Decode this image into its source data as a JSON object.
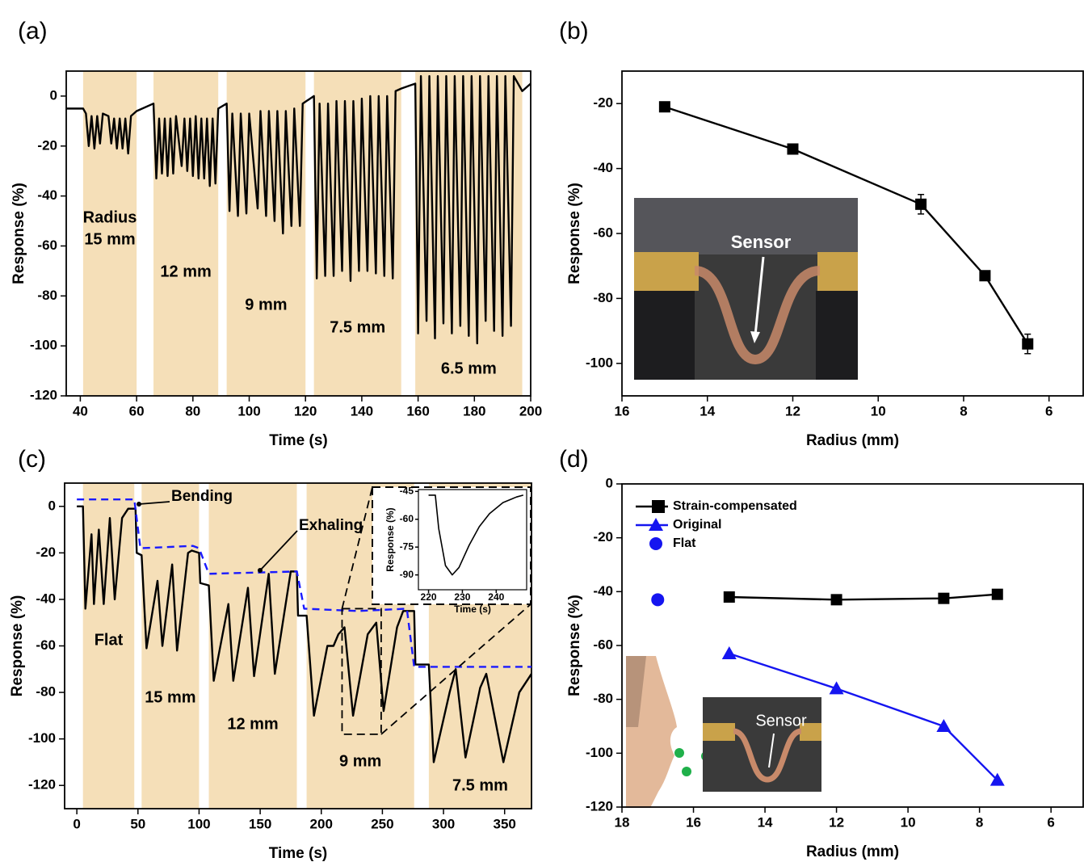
{
  "chart_data": [
    {
      "type": "line",
      "panel": "(a)",
      "xlabel": "Time (s)",
      "ylabel": "Response (%)",
      "xlim": [
        35,
        200
      ],
      "ylim": [
        -120,
        10
      ],
      "xticks": [
        40,
        60,
        80,
        100,
        120,
        140,
        160,
        180,
        200
      ],
      "yticks": [
        -120,
        -100,
        -80,
        -60,
        -40,
        -20,
        0
      ],
      "band_color": "#f5dfb8",
      "band_title": "Radius",
      "bands": [
        {
          "start": 41,
          "end": 60,
          "label": "15 mm"
        },
        {
          "start": 66,
          "end": 89,
          "label": "12 mm"
        },
        {
          "start": 92,
          "end": 120,
          "label": "9 mm"
        },
        {
          "start": 123,
          "end": 154,
          "label": "7.5 mm"
        },
        {
          "start": 159,
          "end": 197,
          "label": "6.5 mm"
        }
      ],
      "series": [
        {
          "color": "#000000",
          "x": [
            35,
            41,
            42,
            43,
            44,
            45,
            46,
            47,
            48,
            50,
            51,
            52,
            53,
            54,
            55,
            56,
            57,
            58,
            60,
            66,
            67,
            68,
            69,
            70,
            71,
            72,
            73,
            74,
            76,
            77,
            78,
            79,
            80,
            81,
            82,
            83,
            84,
            85,
            86,
            87,
            88,
            89,
            92,
            93,
            94,
            96,
            97,
            99,
            100,
            103,
            104,
            106,
            107,
            109,
            110,
            112,
            113,
            115,
            116,
            118,
            119,
            123,
            124,
            125,
            127,
            128,
            130,
            131,
            133,
            134,
            136,
            137,
            139,
            140,
            142,
            143,
            145,
            146,
            148,
            149,
            151,
            152,
            154,
            159,
            160,
            161,
            163,
            164,
            166,
            167,
            169,
            170,
            172,
            173,
            175,
            176,
            178,
            179,
            181,
            182,
            184,
            185,
            187,
            188,
            190,
            191,
            193,
            194,
            197,
            200
          ],
          "values": [
            -5,
            -5,
            -7,
            -20,
            -8,
            -21,
            -8,
            -19,
            -7,
            -8,
            -19,
            -9,
            -21,
            -9,
            -21,
            -9,
            -23,
            -8,
            -6,
            -3,
            -33,
            -9,
            -31,
            -9,
            -32,
            -9,
            -31,
            -8,
            -28,
            -9,
            -30,
            -9,
            -32,
            -8,
            -33,
            -9,
            -33,
            -9,
            -36,
            -9,
            -35,
            -5,
            -3,
            -46,
            -7,
            -48,
            -7,
            -47,
            -7,
            -45,
            -6,
            -48,
            -6,
            -50,
            -6,
            -55,
            -6,
            -52,
            -5,
            -52,
            -3,
            0,
            -73,
            -3,
            -72,
            -3,
            -72,
            -2,
            -70,
            -2,
            -74,
            -2,
            -70,
            -1,
            -70,
            0,
            -71,
            0,
            -72,
            0,
            -73,
            2,
            3,
            5,
            -95,
            8,
            -90,
            8,
            -97,
            8,
            -91,
            8,
            -95,
            8,
            -92,
            8,
            -96,
            8,
            -99,
            8,
            -90,
            8,
            -94,
            8,
            -96,
            8,
            -92,
            8,
            2,
            5
          ]
        }
      ]
    },
    {
      "type": "line",
      "panel": "(b)",
      "xlabel": "Radius (mm)",
      "ylabel": "Response (%)",
      "xlim": [
        16,
        5.2
      ],
      "ylim": [
        -110,
        -10
      ],
      "xticks": [
        16,
        14,
        12,
        10,
        8,
        6
      ],
      "yticks": [
        -100,
        -80,
        -60,
        -40,
        -20
      ],
      "inset_label": "Sensor",
      "series": [
        {
          "color": "#000000",
          "marker": "square",
          "line": true,
          "x": [
            15,
            12,
            9,
            7.5,
            6.5
          ],
          "values": [
            -21,
            -34,
            -51,
            -73,
            -94
          ],
          "errors": [
            1,
            1.5,
            3,
            1,
            3
          ]
        }
      ]
    },
    {
      "type": "line",
      "panel": "(c)",
      "xlabel": "Time (s)",
      "ylabel": "Response (%)",
      "xlim": [
        -10,
        372
      ],
      "ylim": [
        -130,
        10
      ],
      "xticks": [
        0,
        50,
        100,
        150,
        200,
        250,
        300,
        350
      ],
      "yticks": [
        -120,
        -100,
        -80,
        -60,
        -40,
        -20,
        0
      ],
      "band_color": "#f5dfb8",
      "bands": [
        {
          "start": 5,
          "end": 47,
          "label": "Flat"
        },
        {
          "start": 53,
          "end": 100,
          "label": "15 mm"
        },
        {
          "start": 108,
          "end": 180,
          "label": "12 mm"
        },
        {
          "start": 188,
          "end": 276,
          "label": "9 mm"
        },
        {
          "start": 288,
          "end": 372,
          "label": "7.5 mm"
        }
      ],
      "annotations": [
        "Bending",
        "Exhaling"
      ],
      "series": [
        {
          "color": "#000000",
          "x": [
            0,
            5,
            7,
            12,
            14,
            18,
            22,
            27,
            31,
            37,
            42,
            48,
            49,
            53,
            57,
            66,
            70,
            78,
            82,
            91,
            94,
            100,
            101,
            108,
            112,
            124,
            128,
            140,
            145,
            157,
            162,
            175,
            180,
            181,
            188,
            194,
            205,
            210,
            214,
            219,
            226,
            238,
            245,
            251,
            262,
            267,
            276,
            277,
            288,
            292,
            305,
            310,
            318,
            330,
            335,
            349,
            362,
            372
          ],
          "values": [
            0,
            0,
            -44,
            -12,
            -42,
            -10,
            -42,
            -5,
            -40,
            -5,
            -1,
            -1,
            -20,
            -21,
            -61,
            -32,
            -60,
            -25,
            -62,
            -20,
            -19,
            -20,
            -33,
            -34,
            -75,
            -42,
            -75,
            -35,
            -73,
            -29,
            -72,
            -28,
            -28,
            -47,
            -47,
            -90,
            -60,
            -60,
            -55,
            -52,
            -90,
            -55,
            -50,
            -88,
            -52,
            -45,
            -45,
            -68,
            -68,
            -110,
            -80,
            -70,
            -108,
            -78,
            -72,
            -110,
            -80,
            -72
          ]
        },
        {
          "color": "#1a1aff",
          "dash": true,
          "x": [
            0,
            47,
            52,
            95,
            100,
            108,
            180,
            186,
            230,
            270,
            276,
            372
          ],
          "values": [
            3,
            3,
            -18,
            -17,
            -18,
            -29,
            -28,
            -44,
            -45,
            -44,
            -69,
            -69
          ]
        }
      ],
      "inset": {
        "type": "line",
        "xlabel": "Time (s)",
        "ylabel": "Response (%)",
        "xlim": [
          217,
          249
        ],
        "ylim": [
          -98,
          -44
        ],
        "xticks": [
          220,
          230,
          240
        ],
        "yticks": [
          -90,
          -75,
          -60,
          -45
        ],
        "series": [
          {
            "color": "#000000",
            "x": [
              220,
              222,
              223,
              225,
              227,
              229,
              232,
              235,
              238,
              242,
              246,
              248
            ],
            "values": [
              -47,
              -47,
              -65,
              -85,
              -90,
              -86,
              -74,
              -64,
              -57,
              -51,
              -48,
              -47
            ]
          }
        ]
      }
    },
    {
      "type": "line",
      "panel": "(d)",
      "xlabel": "Radius (mm)",
      "ylabel": "Response (%)",
      "xlim": [
        18,
        5.1
      ],
      "ylim": [
        -120,
        0
      ],
      "xticks": [
        18,
        16,
        14,
        12,
        10,
        8,
        6
      ],
      "yticks": [
        -120,
        -100,
        -80,
        -60,
        -40,
        -20,
        0
      ],
      "inset_label": "Sensor",
      "series": [
        {
          "name": "Strain-compensated",
          "color": "#000000",
          "marker": "square",
          "line": true,
          "x": [
            15,
            12,
            9,
            7.5
          ],
          "values": [
            -42,
            -43,
            -42.5,
            -41
          ]
        },
        {
          "name": "Original",
          "color": "#1515f0",
          "marker": "triangle",
          "line": true,
          "x": [
            15,
            12,
            9,
            7.5
          ],
          "values": [
            -63,
            -76,
            -90,
            -110
          ]
        },
        {
          "name": "Flat",
          "color": "#1515f0",
          "marker": "circle",
          "line": false,
          "x": [
            17
          ],
          "values": [
            -43
          ]
        }
      ]
    }
  ]
}
